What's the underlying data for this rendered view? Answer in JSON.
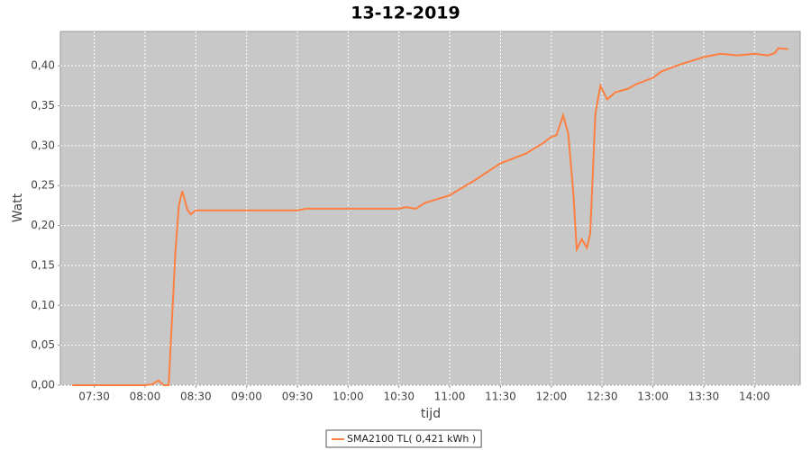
{
  "chart_data": {
    "type": "line",
    "title": "13-12-2019",
    "x_label": "tijd",
    "y_label": "Watt",
    "x": [
      "07:17",
      "08:00",
      "08:04",
      "08:08",
      "08:11",
      "08:14",
      "08:18",
      "08:20",
      "08:22",
      "08:25",
      "08:27",
      "08:30",
      "09:00",
      "09:30",
      "09:35",
      "10:00",
      "10:30",
      "10:34",
      "10:40",
      "10:45",
      "11:00",
      "11:15",
      "11:30",
      "11:45",
      "11:55",
      "12:00",
      "12:03",
      "12:07",
      "12:10",
      "12:13",
      "12:15",
      "12:18",
      "12:21",
      "12:23",
      "12:26",
      "12:29",
      "12:33",
      "12:38",
      "12:45",
      "12:50",
      "13:00",
      "13:05",
      "13:15",
      "13:30",
      "13:40",
      "13:50",
      "14:00",
      "14:08",
      "14:12",
      "14:14",
      "14:20"
    ],
    "series": [
      {
        "name": "SMA2100 TL( 0,421 kWh )",
        "color": "#ff7f40",
        "values": [
          0,
          0,
          0.001,
          0.006,
          0,
          0,
          0.17,
          0.225,
          0.243,
          0.22,
          0.214,
          0.219,
          0.219,
          0.219,
          0.221,
          0.221,
          0.221,
          0.223,
          0.221,
          0.228,
          0.238,
          0.257,
          0.278,
          0.29,
          0.303,
          0.311,
          0.313,
          0.338,
          0.315,
          0.24,
          0.17,
          0.183,
          0.172,
          0.19,
          0.34,
          0.375,
          0.358,
          0.367,
          0.371,
          0.377,
          0.385,
          0.393,
          0.401,
          0.411,
          0.415,
          0.413,
          0.415,
          0.413,
          0.416,
          0.422,
          0.421
        ]
      }
    ],
    "xlim": [
      "07:10",
      "14:27"
    ],
    "xticks": [
      "07:30",
      "08:00",
      "08:30",
      "09:00",
      "09:30",
      "10:00",
      "10:30",
      "11:00",
      "11:30",
      "12:00",
      "12:30",
      "13:00",
      "13:30",
      "14:00"
    ],
    "ylim": [
      0,
      0.443
    ],
    "yticks": [
      {
        "value": 0,
        "label": "0,00"
      },
      {
        "value": 0.05,
        "label": "0,05"
      },
      {
        "value": 0.1,
        "label": "0,10"
      },
      {
        "value": 0.15,
        "label": "0,15"
      },
      {
        "value": 0.2,
        "label": "0,20"
      },
      {
        "value": 0.25,
        "label": "0,25"
      },
      {
        "value": 0.3,
        "label": "0,30"
      },
      {
        "value": 0.35,
        "label": "0,35"
      },
      {
        "value": 0.4,
        "label": "0,40"
      }
    ],
    "grid": true,
    "legend": "bottom"
  }
}
